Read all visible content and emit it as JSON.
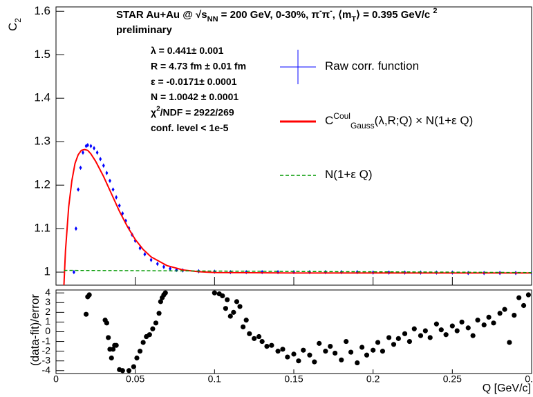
{
  "chart_data": [
    {
      "type": "line",
      "y_label": [
        {
          "text": "C"
        },
        {
          "text": "2",
          "shift": "sub"
        }
      ],
      "title": [
        {
          "text": "STAR Au+Au @ "
        },
        {
          "text": "√s"
        },
        {
          "text": "NN",
          "shift": "sub"
        },
        {
          "text": " = 200 GeV, 0-30%,   π"
        },
        {
          "text": "-",
          "shift": "sup"
        },
        {
          "text": "π"
        },
        {
          "text": "-",
          "shift": "sup"
        },
        {
          "text": ",  ⟨m"
        },
        {
          "text": "T",
          "shift": "sub"
        },
        {
          "text": "⟩ = 0.395 GeV/c "
        },
        {
          "text": "2",
          "shift": "sup"
        }
      ],
      "subtitle": "preliminary",
      "annotations": [
        [
          {
            "text": "λ = 0.441± 0.001"
          }
        ],
        [
          {
            "text": "R = 4.73 fm ± 0.01 fm"
          }
        ],
        [
          {
            "text": "ε = -0.0171± 0.0001"
          }
        ],
        [
          {
            "text": "N = 1.0042 ± 0.0001"
          }
        ],
        [
          {
            "text": "χ"
          },
          {
            "text": "2",
            "shift": "sup"
          },
          {
            "text": "/NDF = 2922/269"
          }
        ],
        [
          {
            "text": "conf. level < 1e-5"
          }
        ]
      ],
      "xlim": [
        0,
        0.3
      ],
      "xticks": [
        0,
        0.05,
        0.1,
        0.15,
        0.2,
        0.25,
        0.3
      ],
      "ylim": [
        0.97,
        1.61
      ],
      "yticks": [
        1,
        1.1,
        1.2,
        1.3,
        1.4,
        1.5,
        1.6
      ],
      "series": [
        {
          "name": [
            {
              "text": "Raw corr. function"
            }
          ],
          "color": "#0000ff",
          "style": "points",
          "x": [
            0.0113,
            0.0126,
            0.014,
            0.0155,
            0.017,
            0.019,
            0.02,
            0.022,
            0.024,
            0.026,
            0.028,
            0.03,
            0.032,
            0.034,
            0.036,
            0.038,
            0.04,
            0.042,
            0.044,
            0.046,
            0.048,
            0.05,
            0.053,
            0.056,
            0.06,
            0.064,
            0.068,
            0.072,
            0.076,
            0.08,
            0.09,
            0.1,
            0.11,
            0.12,
            0.13,
            0.14,
            0.15,
            0.16,
            0.17,
            0.18,
            0.19,
            0.2,
            0.21,
            0.22,
            0.23,
            0.24,
            0.25,
            0.26,
            0.27,
            0.28,
            0.29,
            0.3
          ],
          "values": [
            1.0,
            1.1,
            1.19,
            1.24,
            1.275,
            1.29,
            1.292,
            1.29,
            1.285,
            1.275,
            1.26,
            1.245,
            1.228,
            1.21,
            1.19,
            1.172,
            1.153,
            1.135,
            1.118,
            1.101,
            1.086,
            1.072,
            1.055,
            1.041,
            1.028,
            1.019,
            1.012,
            1.008,
            1.005,
            1.004,
            1.002,
            1.001,
            1.0,
            1.0,
            1.0,
            1.0,
            1.0,
            1.0,
            1.0,
            1.0,
            1.0,
            0.999,
            0.999,
            0.999,
            0.999,
            0.999,
            0.999,
            0.998,
            0.998,
            0.998,
            0.998,
            0.998
          ]
        },
        {
          "name": [
            {
              "text": "C"
            },
            {
              "text": "Coul",
              "shift": "sup"
            },
            {
              "text": "Gauss",
              "shift": "sub"
            },
            {
              "text": "(λ,R;Q) × N(1+ε Q)"
            }
          ],
          "color": "#ff0000",
          "style": "line",
          "x": [
            0.005,
            0.006,
            0.008,
            0.01,
            0.012,
            0.014,
            0.016,
            0.018,
            0.02,
            0.022,
            0.025,
            0.03,
            0.035,
            0.04,
            0.045,
            0.05,
            0.055,
            0.06,
            0.07,
            0.08,
            0.09,
            0.1,
            0.15,
            0.2,
            0.3
          ],
          "values": [
            0.97,
            1.05,
            1.15,
            1.21,
            1.25,
            1.27,
            1.28,
            1.282,
            1.28,
            1.272,
            1.255,
            1.22,
            1.18,
            1.14,
            1.105,
            1.075,
            1.052,
            1.035,
            1.015,
            1.005,
            1.001,
            0.999,
            0.998,
            0.998,
            0.998
          ]
        },
        {
          "name": [
            {
              "text": "N(1+ε Q)"
            }
          ],
          "color": "#009900",
          "style": "dashed",
          "x": [
            0.005,
            0.3
          ],
          "values": [
            1.004,
            0.999
          ]
        }
      ]
    },
    {
      "type": "scatter",
      "y_label": [
        {
          "text": "(data-fit)/error"
        }
      ],
      "x_label": "Q [GeV/c]",
      "xlim": [
        0,
        0.3
      ],
      "xticks": [
        0,
        0.05,
        0.1,
        0.15,
        0.2,
        0.25,
        0.3
      ],
      "ylim": [
        -4.3,
        4.3
      ],
      "yticks": [
        -4,
        -3,
        -2,
        -1,
        0,
        1,
        2,
        3,
        4
      ],
      "color": "#000000",
      "x": [
        0.019,
        0.02,
        0.021,
        0.031,
        0.032,
        0.033,
        0.034,
        0.035,
        0.036,
        0.037,
        0.038,
        0.04,
        0.042,
        0.046,
        0.049,
        0.051,
        0.053,
        0.055,
        0.057,
        0.059,
        0.061,
        0.063,
        0.065,
        0.066,
        0.067,
        0.068,
        0.069,
        0.1,
        0.103,
        0.105,
        0.107,
        0.108,
        0.11,
        0.112,
        0.114,
        0.116,
        0.118,
        0.12,
        0.122,
        0.125,
        0.128,
        0.13,
        0.133,
        0.136,
        0.14,
        0.143,
        0.146,
        0.15,
        0.153,
        0.156,
        0.16,
        0.163,
        0.166,
        0.17,
        0.173,
        0.176,
        0.18,
        0.183,
        0.186,
        0.19,
        0.193,
        0.196,
        0.2,
        0.203,
        0.206,
        0.21,
        0.213,
        0.216,
        0.22,
        0.223,
        0.226,
        0.23,
        0.233,
        0.236,
        0.24,
        0.243,
        0.246,
        0.25,
        0.253,
        0.256,
        0.26,
        0.263,
        0.266,
        0.27,
        0.273,
        0.276,
        0.28,
        0.283,
        0.286,
        0.289,
        0.292,
        0.295,
        0.298
      ],
      "values": [
        1.8,
        3.6,
        3.8,
        1.2,
        0.9,
        -0.6,
        -1.8,
        -2.7,
        -1.8,
        -1.4,
        -1.4,
        -3.9,
        -4.0,
        -4.0,
        -3.6,
        -2.7,
        -2.0,
        -1.1,
        -0.5,
        -0.3,
        0.3,
        0.9,
        1.9,
        3.1,
        3.5,
        3.8,
        4.0,
        4.0,
        3.9,
        3.7,
        2.4,
        3.3,
        1.6,
        2.0,
        3.1,
        2.6,
        0.5,
        1.2,
        -0.2,
        -0.7,
        -0.5,
        -1.0,
        -1.5,
        -1.4,
        -2.0,
        -1.8,
        -2.6,
        -2.3,
        -3.0,
        -1.9,
        -2.4,
        -3.1,
        -1.2,
        -2.0,
        -1.5,
        -2.2,
        -2.9,
        -1.0,
        -2.1,
        -3.2,
        -1.6,
        -2.4,
        -1.9,
        -1.1,
        -2.0,
        -0.6,
        -1.3,
        -0.7,
        -0.2,
        -1.0,
        0.3,
        -0.4,
        0.1,
        -0.6,
        0.8,
        0.2,
        -0.3,
        0.6,
        0.1,
        1.0,
        0.4,
        -0.4,
        1.2,
        0.7,
        1.5,
        0.9,
        1.9,
        2.3,
        -1.1,
        1.7,
        3.5,
        2.7,
        3.8
      ]
    }
  ]
}
